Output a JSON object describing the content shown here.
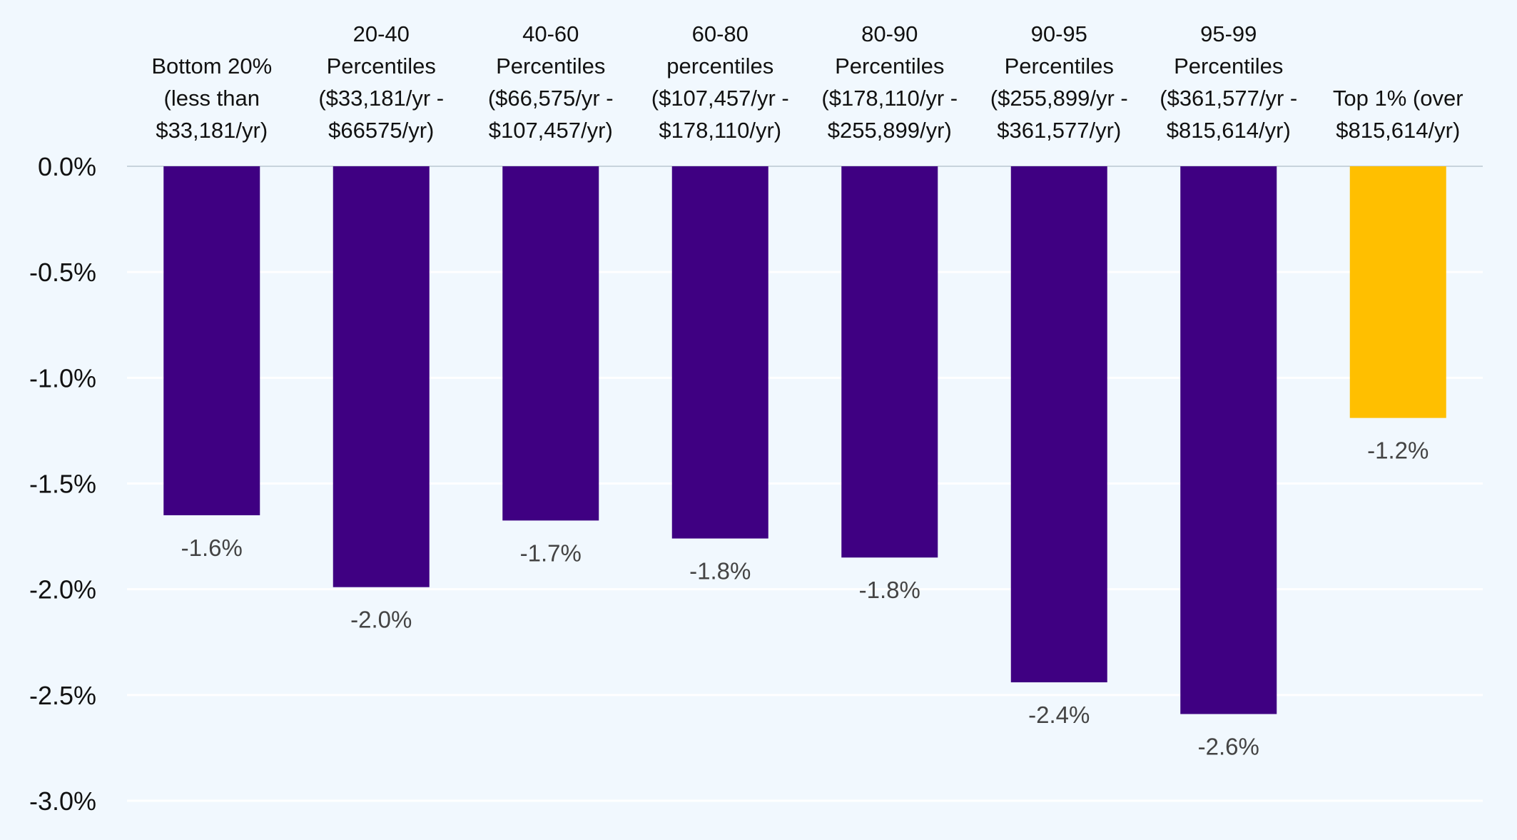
{
  "chart_data": {
    "type": "bar",
    "categories": [
      [
        "Bottom 20%",
        "(less than",
        "$33,181/yr)"
      ],
      [
        "20-40",
        "Percentiles",
        "($33,181/yr -",
        "$66575/yr)"
      ],
      [
        "40-60",
        "Percentiles",
        "($66,575/yr -",
        "$107,457/yr)"
      ],
      [
        "60-80",
        "percentiles",
        "($107,457/yr -",
        "$178,110/yr)"
      ],
      [
        "80-90",
        "Percentiles",
        "($178,110/yr -",
        "$255,899/yr)"
      ],
      [
        "90-95",
        "Percentiles",
        "($255,899/yr -",
        "$361,577/yr)"
      ],
      [
        "95-99",
        "Percentiles",
        "($361,577/yr -",
        "$815,614/yr)"
      ],
      [
        "Top 1% (over",
        "$815,614/yr)"
      ]
    ],
    "values": [
      -1.65,
      -1.99,
      -1.675,
      -1.76,
      -1.85,
      -2.44,
      -2.59,
      -1.19
    ],
    "data_labels": [
      "-1.6%",
      "-2.0%",
      "-1.7%",
      "-1.8%",
      "-1.8%",
      "-2.4%",
      "-2.6%",
      "-1.2%"
    ],
    "colors": [
      "#3f0082",
      "#3f0082",
      "#3f0082",
      "#3f0082",
      "#3f0082",
      "#3f0082",
      "#3f0082",
      "#ffbf00"
    ],
    "ylim": [
      -3.0,
      0.0
    ],
    "yticks": [
      0.0,
      -0.5,
      -1.0,
      -1.5,
      -2.0,
      -2.5,
      -3.0
    ],
    "ytick_labels": [
      "0.0%",
      "-0.5%",
      "-1.0%",
      "-1.5%",
      "-2.0%",
      "-2.5%",
      "-3.0%"
    ],
    "grid": true,
    "category_axis_position": "top",
    "gridline_color": "#ffffff",
    "zero_line_color": "#c8d3dc",
    "title": "",
    "xlabel": "",
    "ylabel": ""
  }
}
